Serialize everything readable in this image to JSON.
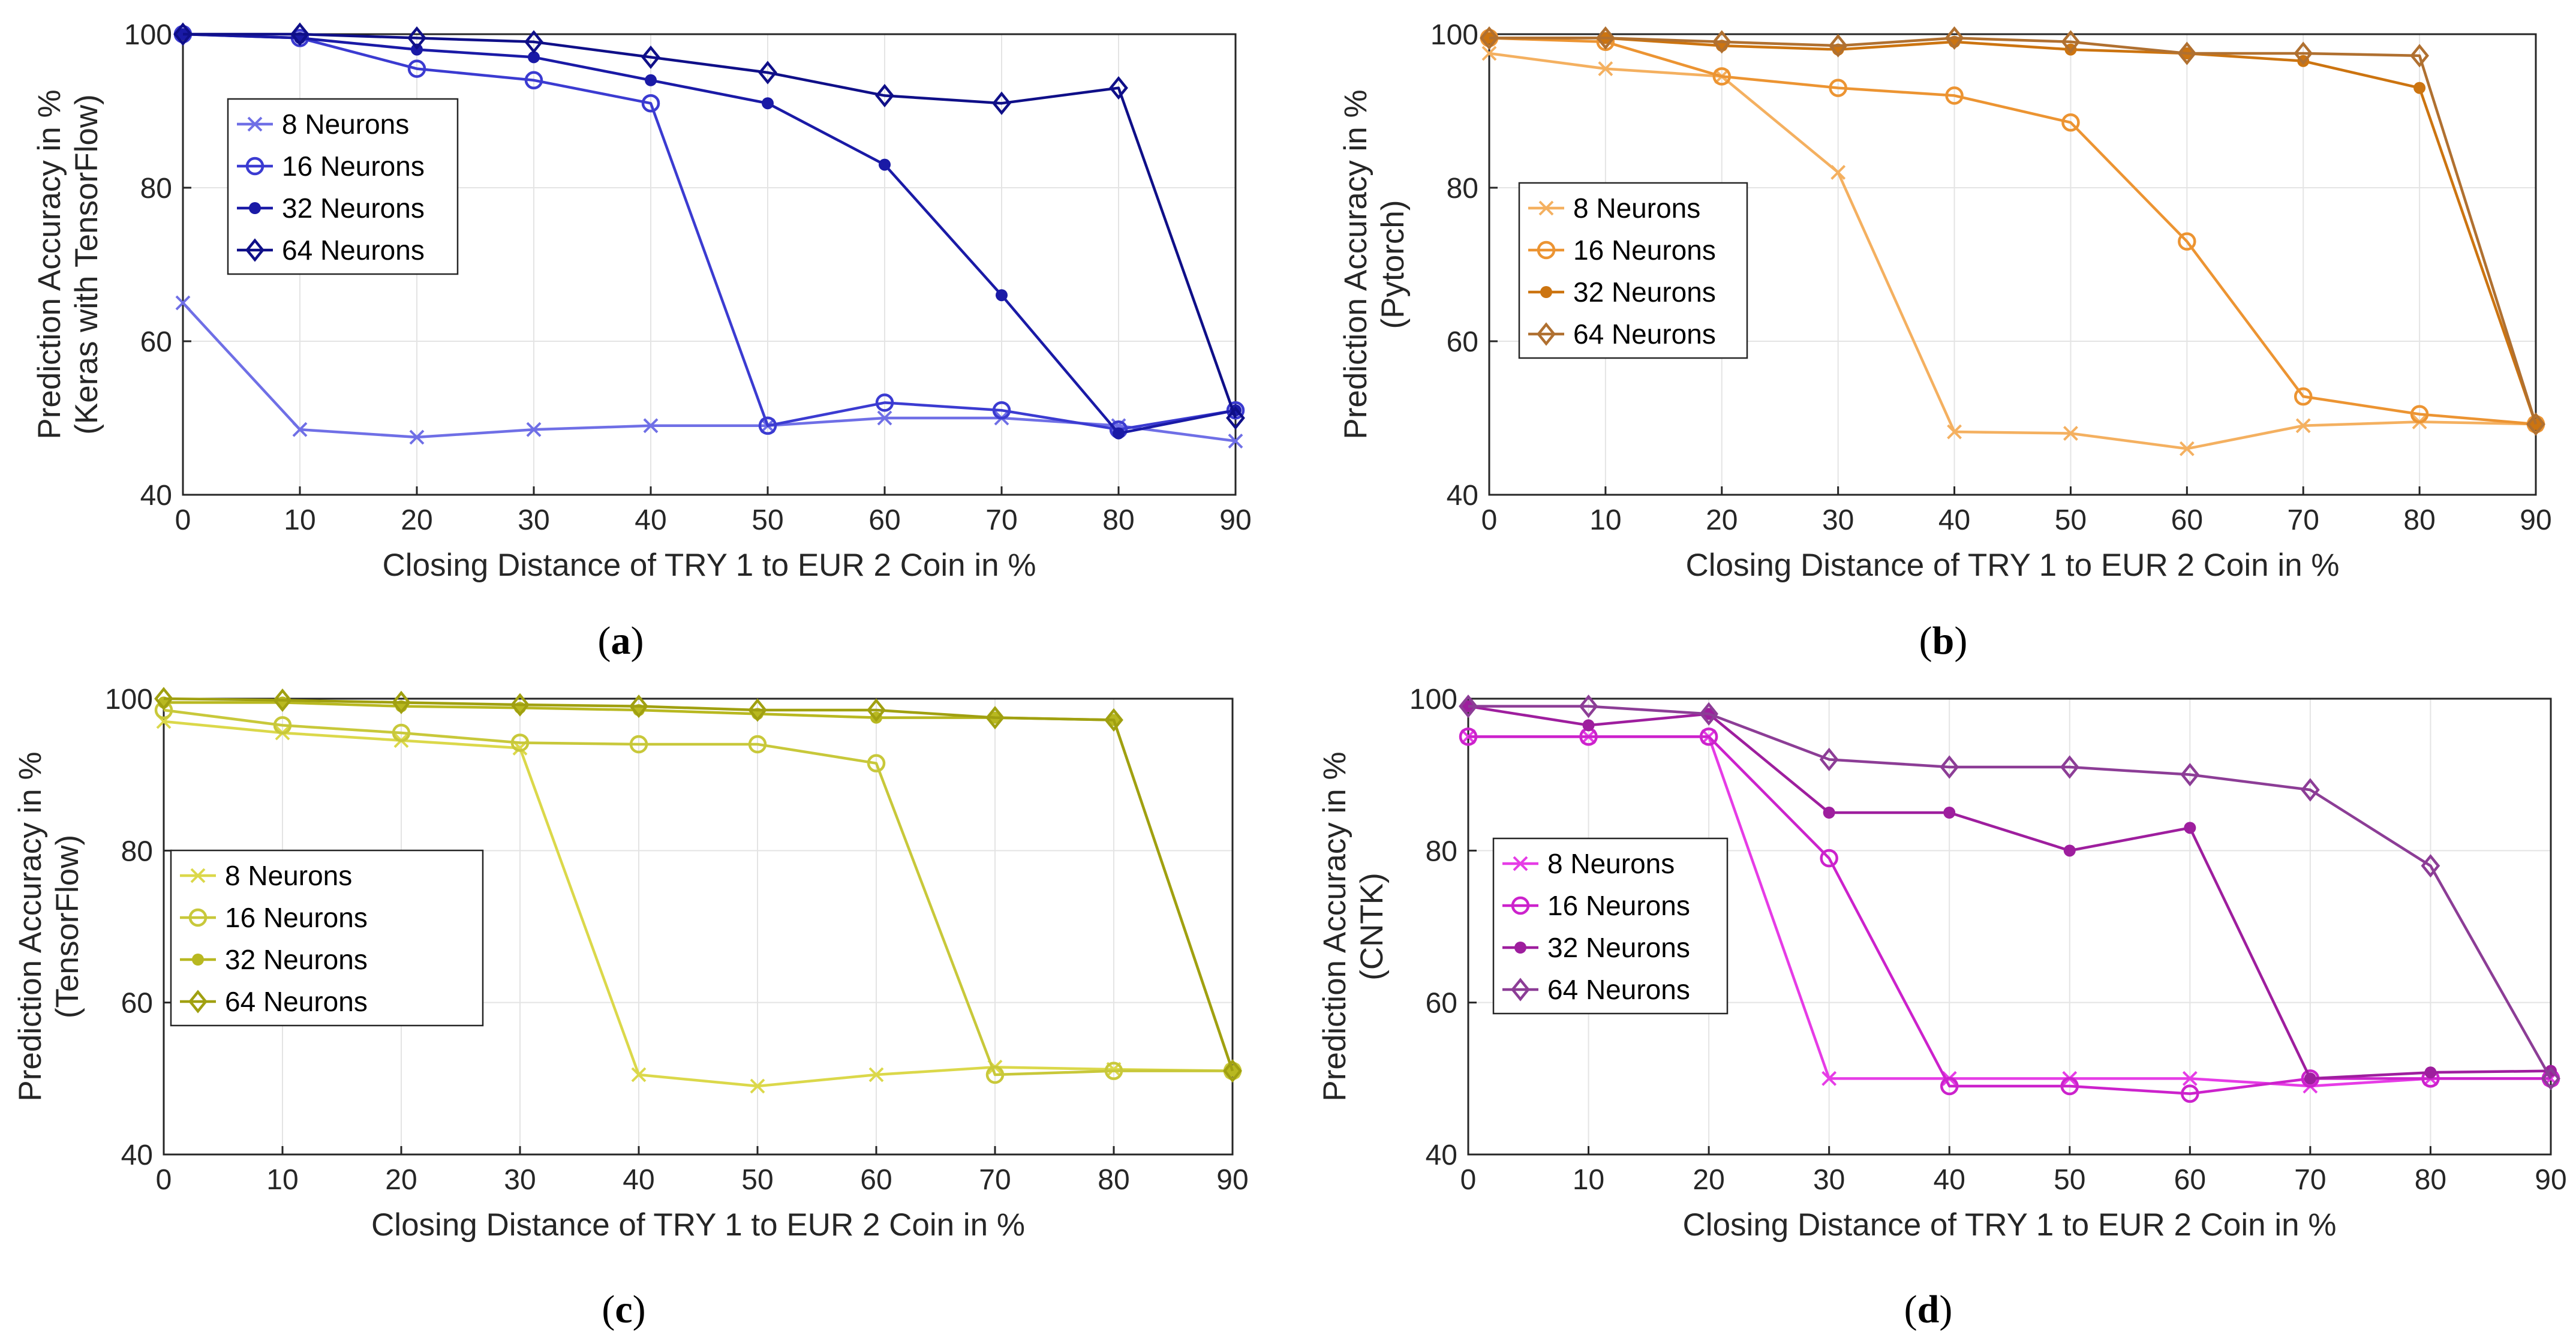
{
  "figure": {
    "captions": [
      "(a)",
      "(b)",
      "(c)",
      "(d)"
    ],
    "caption_letters": [
      "a",
      "b",
      "c",
      "d"
    ]
  },
  "chart_data": [
    {
      "id": "a",
      "type": "line",
      "framework": "Keras with TensorFlow",
      "xlabel": "Closing Distance of TRY 1 to EUR 2 Coin in %",
      "ylabel": [
        "Prediction Accuracy in %",
        "(Keras with TensorFlow)"
      ],
      "xlim": [
        0,
        90
      ],
      "ylim": [
        40,
        100
      ],
      "xticks": [
        0,
        10,
        20,
        30,
        40,
        50,
        60,
        70,
        80,
        90
      ],
      "yticks": [
        40,
        60,
        80,
        100
      ],
      "grid": true,
      "legend_position": "upper-left",
      "x": [
        0,
        10,
        20,
        30,
        40,
        50,
        60,
        70,
        80,
        90
      ],
      "series": [
        {
          "name": "8 Neurons",
          "marker": "x",
          "color": "#6f6fe6",
          "values": [
            65,
            48.5,
            47.5,
            48.5,
            49,
            49,
            50,
            50,
            49,
            47
          ]
        },
        {
          "name": "16 Neurons",
          "marker": "o",
          "color": "#3b3bd1",
          "values": [
            100,
            99.5,
            95.5,
            94,
            91,
            49,
            52,
            51,
            48.5,
            51
          ]
        },
        {
          "name": "32 Neurons",
          "marker": "*",
          "color": "#1a1aa6",
          "values": [
            100,
            99.5,
            98,
            97,
            94,
            91,
            83,
            66,
            48,
            51
          ]
        },
        {
          "name": "64 Neurons",
          "marker": "d",
          "color": "#0f0f88",
          "values": [
            100,
            100,
            99.5,
            99,
            97,
            95,
            92,
            91,
            93,
            50
          ]
        }
      ]
    },
    {
      "id": "b",
      "type": "line",
      "framework": "Pytorch",
      "xlabel": "Closing Distance of TRY 1 to EUR 2 Coin in %",
      "ylabel": [
        "Prediction Accuracy in %",
        "(Pytorch)"
      ],
      "xlim": [
        0,
        90
      ],
      "ylim": [
        40,
        100
      ],
      "xticks": [
        0,
        10,
        20,
        30,
        40,
        50,
        60,
        70,
        80,
        90
      ],
      "yticks": [
        40,
        60,
        80,
        100
      ],
      "grid": true,
      "legend_position": "middle-left",
      "x": [
        0,
        10,
        20,
        30,
        40,
        50,
        60,
        70,
        80,
        90
      ],
      "series": [
        {
          "name": "8 Neurons",
          "marker": "x",
          "color": "#f4b060",
          "values": [
            97.5,
            95.5,
            94.5,
            82,
            48.2,
            48,
            46,
            49,
            49.5,
            49.2
          ]
        },
        {
          "name": "16 Neurons",
          "marker": "o",
          "color": "#ec9432",
          "values": [
            99.5,
            99,
            94.5,
            93,
            92,
            88.5,
            73,
            52.8,
            50.5,
            49.2
          ]
        },
        {
          "name": "32 Neurons",
          "marker": "*",
          "color": "#cc7410",
          "values": [
            99.5,
            99.5,
            98.5,
            98,
            99,
            98,
            97.5,
            96.5,
            93,
            49.2
          ]
        },
        {
          "name": "64 Neurons",
          "marker": "d",
          "color": "#b07030",
          "values": [
            99.5,
            99.5,
            99,
            98.5,
            99.5,
            99,
            97.5,
            97.5,
            97.2,
            49.2
          ]
        }
      ]
    },
    {
      "id": "c",
      "type": "line",
      "framework": "TensorFlow",
      "xlabel": "Closing Distance of TRY 1 to EUR 2 Coin in %",
      "ylabel": [
        "Prediction Accuracy in %",
        "(TensorFlow)"
      ],
      "xlim": [
        0,
        90
      ],
      "ylim": [
        40,
        100
      ],
      "xticks": [
        0,
        10,
        20,
        30,
        40,
        50,
        60,
        70,
        80,
        90
      ],
      "yticks": [
        40,
        60,
        80,
        100
      ],
      "grid": true,
      "legend_position": "middle-left",
      "x": [
        0,
        10,
        20,
        30,
        40,
        50,
        60,
        70,
        80,
        90
      ],
      "series": [
        {
          "name": "8 Neurons",
          "marker": "x",
          "color": "#dbd84a",
          "values": [
            97,
            95.5,
            94.5,
            93.5,
            50.5,
            49,
            50.5,
            51.5,
            51.2,
            51
          ]
        },
        {
          "name": "16 Neurons",
          "marker": "o",
          "color": "#c8c83a",
          "values": [
            98.5,
            96.5,
            95.5,
            94.2,
            94,
            94,
            91.5,
            50.5,
            51,
            51
          ]
        },
        {
          "name": "32 Neurons",
          "marker": "*",
          "color": "#b8b820",
          "values": [
            99.5,
            99.5,
            99,
            98.8,
            98.5,
            98,
            97.5,
            97.5,
            97.2,
            51
          ]
        },
        {
          "name": "64 Neurons",
          "marker": "d",
          "color": "#a0a010",
          "values": [
            100,
            99.8,
            99.5,
            99.2,
            99,
            98.5,
            98.5,
            97.5,
            97.2,
            51
          ]
        }
      ]
    },
    {
      "id": "d",
      "type": "line",
      "framework": "CNTK",
      "xlabel": "Closing Distance of TRY 1 to EUR 2 Coin in %",
      "ylabel": [
        "Prediction Accuracy in %",
        "(CNTK)"
      ],
      "xlim": [
        0,
        90
      ],
      "ylim": [
        40,
        100
      ],
      "xticks": [
        0,
        10,
        20,
        30,
        40,
        50,
        60,
        70,
        80,
        90
      ],
      "yticks": [
        40,
        60,
        80,
        100
      ],
      "grid": true,
      "legend_position": "middle-left",
      "x": [
        0,
        10,
        20,
        30,
        40,
        50,
        60,
        70,
        80,
        90
      ],
      "series": [
        {
          "name": "8 Neurons",
          "marker": "x",
          "color": "#e63ce6",
          "values": [
            95,
            95,
            95,
            50,
            50,
            50,
            50,
            49,
            50,
            50
          ]
        },
        {
          "name": "16 Neurons",
          "marker": "o",
          "color": "#cc22cc",
          "values": [
            95,
            95,
            95,
            79,
            49,
            49,
            48,
            50,
            50,
            50
          ]
        },
        {
          "name": "32 Neurons",
          "marker": "*",
          "color": "#9e1e9e",
          "values": [
            99,
            96.5,
            98,
            85,
            85,
            80,
            83,
            50,
            50.8,
            51
          ]
        },
        {
          "name": "64 Neurons",
          "marker": "d",
          "color": "#8c3d96",
          "values": [
            99,
            99,
            98,
            92,
            91,
            91,
            90,
            88,
            78,
            50
          ]
        }
      ]
    }
  ]
}
